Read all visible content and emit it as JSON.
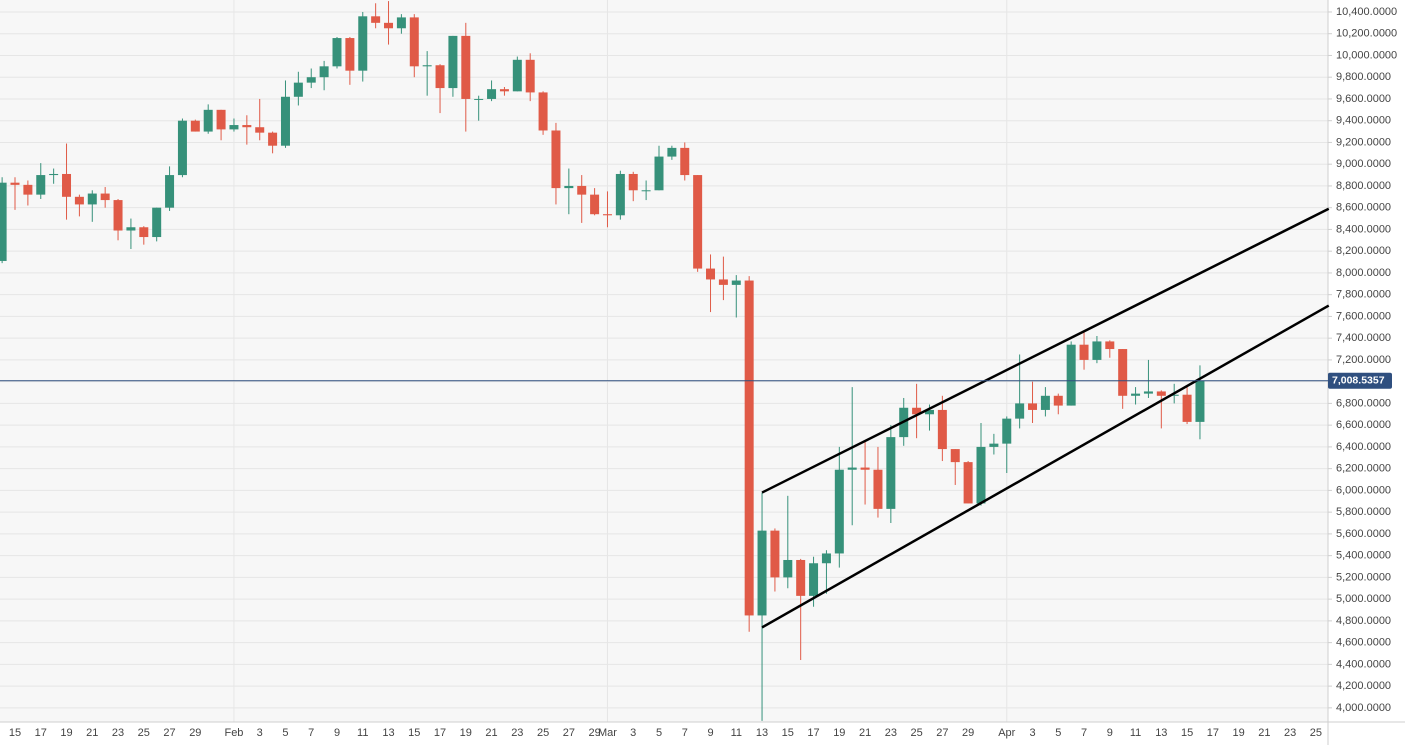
{
  "chart_data": {
    "type": "candlestick",
    "categories": [
      null,
      "15",
      null,
      "17",
      null,
      "19",
      null,
      "21",
      null,
      "23",
      null,
      "25",
      null,
      "27",
      null,
      "29",
      null,
      null,
      "Feb",
      null,
      "3",
      null,
      "5",
      null,
      "7",
      null,
      "9",
      null,
      "11",
      null,
      "13",
      null,
      "15",
      null,
      "17",
      null,
      "19",
      null,
      "21",
      null,
      "23",
      null,
      "25",
      null,
      "27",
      null,
      "29",
      "Mar",
      null,
      "3",
      null,
      "5",
      null,
      "7",
      null,
      "9",
      null,
      "11",
      null,
      "13",
      null,
      "15",
      null,
      "17",
      null,
      "19",
      null,
      "21",
      null,
      "23",
      null,
      "25",
      null,
      "27",
      null,
      "29",
      null,
      null,
      "Apr",
      null,
      "3",
      null,
      "5",
      null,
      "7",
      null,
      "9",
      null,
      "11",
      null,
      "13",
      null,
      "15",
      null,
      "17",
      null,
      "19",
      null,
      "21",
      null,
      "23",
      null,
      "25"
    ],
    "open": [
      8110,
      8830,
      8810,
      8720,
      8900,
      8910,
      8700,
      8630,
      8730,
      8670,
      8390,
      8420,
      8330,
      8600,
      8900,
      9400,
      9300,
      9500,
      9320,
      9360,
      9340,
      9290,
      9170,
      9620,
      9750,
      9800,
      9900,
      10160,
      9860,
      10360,
      10300,
      10250,
      10350,
      9900,
      9910,
      9700,
      10180,
      9600,
      9600,
      9690,
      9670,
      9960,
      9660,
      9310,
      8780,
      8800,
      8720,
      8540,
      8530,
      8910,
      8760,
      8760,
      9070,
      9150,
      8900,
      8040,
      7940,
      7890,
      7930,
      4850,
      5630,
      5200,
      5360,
      5030,
      5330,
      5420,
      6190,
      6210,
      6190,
      5830,
      6490,
      6760,
      6700,
      6740,
      6380,
      6260,
      5880,
      6400,
      6430,
      6660,
      6800,
      6740,
      6870,
      6780,
      7340,
      7200,
      7370,
      7300,
      6870,
      6890,
      6910,
      6870,
      6880,
      6630,
      null,
      null,
      null,
      null,
      null,
      null,
      null,
      null,
      null
    ],
    "high": [
      8880,
      8880,
      8850,
      9010,
      8960,
      9190,
      8720,
      8760,
      8790,
      8680,
      8500,
      8430,
      8600,
      8980,
      9420,
      9410,
      9550,
      9500,
      9420,
      9450,
      9600,
      9300,
      9770,
      9850,
      9880,
      9950,
      10170,
      10170,
      10400,
      10480,
      10500,
      10380,
      10380,
      10040,
      9920,
      10180,
      10300,
      9630,
      9770,
      9710,
      9990,
      10020,
      9670,
      9380,
      8960,
      8900,
      8780,
      8750,
      8940,
      8930,
      8850,
      9170,
      9170,
      9200,
      8900,
      8170,
      8150,
      7980,
      7970,
      5980,
      5650,
      5950,
      5370,
      5390,
      5450,
      6400,
      6950,
      6450,
      6400,
      6600,
      6850,
      6980,
      6790,
      6870,
      6380,
      6270,
      6620,
      6520,
      6680,
      7250,
      7000,
      6950,
      6890,
      7370,
      7460,
      7420,
      7380,
      7300,
      6950,
      7200,
      6920,
      6980,
      6950,
      7150,
      null,
      null,
      null,
      null,
      null,
      null,
      null,
      null,
      null
    ],
    "low": [
      8090,
      8580,
      8620,
      8680,
      8820,
      8490,
      8520,
      8470,
      8600,
      8300,
      8220,
      8260,
      8290,
      8570,
      8880,
      9300,
      9280,
      9220,
      9300,
      9180,
      9220,
      9100,
      9150,
      9540,
      9700,
      9680,
      9880,
      9730,
      9760,
      10250,
      10100,
      10200,
      9800,
      9630,
      9470,
      9620,
      9300,
      9400,
      9580,
      9630,
      9670,
      9580,
      9270,
      8630,
      8540,
      8460,
      8530,
      8420,
      8490,
      8660,
      8670,
      8760,
      9040,
      8850,
      8010,
      7640,
      7750,
      7590,
      4700,
      3880,
      5070,
      5100,
      4440,
      4930,
      5050,
      5290,
      5680,
      5870,
      5750,
      5700,
      6410,
      6480,
      6550,
      6270,
      6050,
      5880,
      5860,
      6330,
      6160,
      6570,
      6620,
      6680,
      6700,
      6780,
      7110,
      7170,
      7220,
      6750,
      6790,
      6850,
      6570,
      6800,
      6610,
      6470,
      null,
      null,
      null,
      null,
      null,
      null,
      null,
      null,
      null
    ],
    "close": [
      8830,
      8810,
      8720,
      8900,
      8910,
      8700,
      8630,
      8730,
      8670,
      8390,
      8420,
      8330,
      8600,
      8900,
      9400,
      9300,
      9500,
      9320,
      9360,
      9340,
      9290,
      9170,
      9620,
      9750,
      9800,
      9900,
      10160,
      9860,
      10360,
      10300,
      10250,
      10350,
      9900,
      9910,
      9700,
      10180,
      9600,
      9600,
      9690,
      9670,
      9960,
      9660,
      9310,
      8780,
      8800,
      8720,
      8540,
      8530,
      8910,
      8760,
      8760,
      9070,
      9150,
      8900,
      8040,
      7940,
      7890,
      7930,
      4850,
      5630,
      5200,
      5360,
      5030,
      5330,
      5420,
      6190,
      6210,
      6190,
      5830,
      6490,
      6760,
      6700,
      6740,
      6380,
      6260,
      5880,
      6400,
      6430,
      6660,
      6800,
      6740,
      6870,
      6780,
      7340,
      7200,
      7370,
      7300,
      6870,
      6890,
      6910,
      6870,
      6880,
      6630,
      7008.5357,
      null,
      null,
      null,
      null,
      null,
      null,
      null,
      null,
      null
    ],
    "up_color": "#36917a",
    "down_color": "#e05a47",
    "last_price": {
      "value": 7008.5357,
      "label": "7,008.5357"
    },
    "last_price_color": "#2f4f7f",
    "trendlines": [
      {
        "x": [
          59,
          103
        ],
        "y": [
          5980,
          8590
        ]
      },
      {
        "x": [
          59,
          103
        ],
        "y": [
          4740,
          7700
        ]
      }
    ],
    "ylim": [
      3870,
      10510
    ],
    "yticks": [
      {
        "value": 4000,
        "label": "4,000.0000"
      },
      {
        "value": 4200,
        "label": "4,200.0000"
      },
      {
        "value": 4400,
        "label": "4,400.0000"
      },
      {
        "value": 4600,
        "label": "4,600.0000"
      },
      {
        "value": 4800,
        "label": "4,800.0000"
      },
      {
        "value": 5000,
        "label": "5,000.0000"
      },
      {
        "value": 5200,
        "label": "5,200.0000"
      },
      {
        "value": 5400,
        "label": "5,400.0000"
      },
      {
        "value": 5600,
        "label": "5,600.0000"
      },
      {
        "value": 5800,
        "label": "5,800.0000"
      },
      {
        "value": 6000,
        "label": "6,000.0000"
      },
      {
        "value": 6200,
        "label": "6,200.0000"
      },
      {
        "value": 6400,
        "label": "6,400.0000"
      },
      {
        "value": 6600,
        "label": "6,600.0000"
      },
      {
        "value": 6800,
        "label": "6,800.0000"
      },
      {
        "value": 7000,
        "label": "7,000.0000"
      },
      {
        "value": 7200,
        "label": "7,200.0000"
      },
      {
        "value": 7400,
        "label": "7,400.0000"
      },
      {
        "value": 7600,
        "label": "7,600.0000"
      },
      {
        "value": 7800,
        "label": "7,800.0000"
      },
      {
        "value": 8000,
        "label": "8,000.0000"
      },
      {
        "value": 8200,
        "label": "8,200.0000"
      },
      {
        "value": 8400,
        "label": "8,400.0000"
      },
      {
        "value": 8600,
        "label": "8,600.0000"
      },
      {
        "value": 8800,
        "label": "8,800.0000"
      },
      {
        "value": 9000,
        "label": "9,000.0000"
      },
      {
        "value": 9200,
        "label": "9,200.0000"
      },
      {
        "value": 9400,
        "label": "9,400.0000"
      },
      {
        "value": 9600,
        "label": "9,600.0000"
      },
      {
        "value": 9800,
        "label": "9,800.0000"
      },
      {
        "value": 10000,
        "label": "10,000.0000"
      },
      {
        "value": 10200,
        "label": "10,200.0000"
      },
      {
        "value": 10400,
        "label": "10,400.0000"
      }
    ],
    "grid": true
  }
}
